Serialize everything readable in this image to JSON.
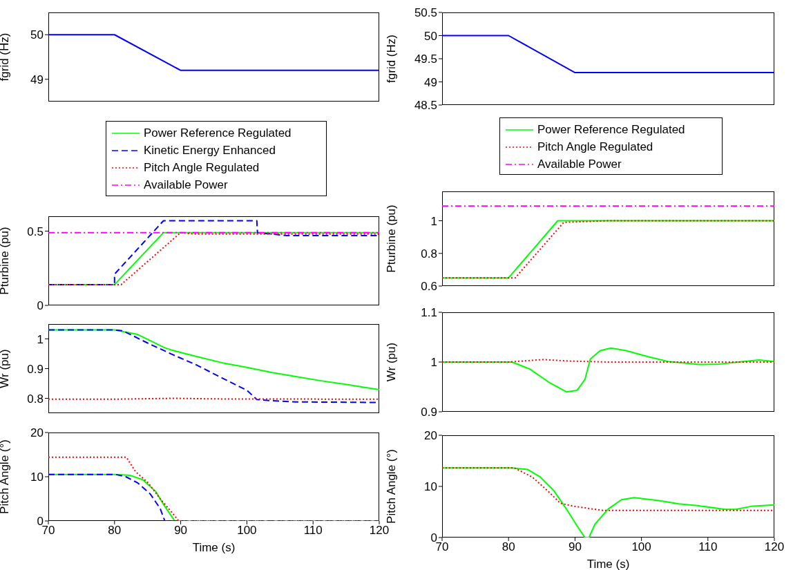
{
  "chart_data": [
    {
      "type": "line",
      "ylabel": "fgrid (Hz)",
      "xlim": [
        70,
        120
      ],
      "xticks": [
        70,
        80,
        90,
        100,
        110,
        120
      ],
      "ylim": [
        48.5,
        50.5
      ],
      "yticks": [
        49,
        50
      ],
      "tick_labels": "y",
      "series": [
        {
          "color": "#0000ff",
          "line_style": "solid",
          "x": [
            70,
            80,
            90,
            120
          ],
          "values": [
            50,
            50,
            49.2,
            49.2
          ]
        }
      ]
    },
    {
      "type": "line",
      "ylabel": "fgrid (Hz)",
      "xlim": [
        70,
        120
      ],
      "xticks": [
        70,
        80,
        90,
        100,
        110,
        120
      ],
      "ylim": [
        48.5,
        50.5
      ],
      "yticks": [
        48.5,
        49,
        49.5,
        50,
        50.5
      ],
      "tick_labels": "y",
      "series": [
        {
          "color": "#0000ff",
          "line_style": "solid",
          "x": [
            70,
            80,
            90,
            120
          ],
          "values": [
            50,
            50,
            49.2,
            49.2
          ]
        }
      ]
    },
    {
      "type": "line",
      "ylabel": "Pturbine (pu)",
      "xlim": [
        70,
        120
      ],
      "xticks": [
        70,
        80,
        90,
        100,
        110,
        120
      ],
      "ylim": [
        0,
        0.6
      ],
      "yticks": [
        0,
        0.5
      ],
      "tick_labels": "y",
      "legend": "top",
      "series": [
        {
          "name": "Power Reference Regulated",
          "color": "#00ff00",
          "line_style": "solid",
          "x": [
            70,
            80,
            87.4,
            120
          ],
          "values": [
            0.14,
            0.14,
            0.49,
            0.49
          ]
        },
        {
          "name": "Kinetic Energy Enhanced",
          "color": "#0000ff",
          "line_style": "dashed",
          "x": [
            70,
            80,
            80,
            87.4,
            101.5,
            101.6,
            106,
            120
          ],
          "values": [
            0.14,
            0.14,
            0.21,
            0.57,
            0.57,
            0.49,
            0.47,
            0.47
          ]
        },
        {
          "name": "Pitch Angle Regulated",
          "color": "#ff0000",
          "line_style": "dotted",
          "x": [
            70,
            81,
            90,
            92,
            120
          ],
          "values": [
            0.14,
            0.14,
            0.49,
            0.48,
            0.48
          ]
        },
        {
          "name": "Available Power",
          "color": "#ff00ff",
          "line_style": "dashdot",
          "x": [
            70,
            120
          ],
          "values": [
            0.49,
            0.49
          ]
        }
      ]
    },
    {
      "type": "line",
      "ylabel": "Pturbine (pu)",
      "xlim": [
        70,
        120
      ],
      "xticks": [
        70,
        80,
        90,
        100,
        110,
        120
      ],
      "ylim": [
        0.6,
        1.18
      ],
      "yticks": [
        0.6,
        0.8,
        1
      ],
      "tick_labels": "y",
      "legend": "top",
      "series": [
        {
          "name": "Power Reference Regulated",
          "color": "#00ff00",
          "line_style": "solid",
          "x": [
            70,
            80,
            87.4,
            120
          ],
          "values": [
            0.65,
            0.65,
            1,
            1
          ]
        },
        {
          "name": "Pitch Angle Regulated",
          "color": "#ff0000",
          "line_style": "dotted",
          "x": [
            70,
            81,
            88.3,
            91.5,
            95,
            120
          ],
          "values": [
            0.65,
            0.65,
            0.99,
            0.995,
            1,
            1
          ]
        },
        {
          "name": "Available Power",
          "color": "#ff00ff",
          "line_style": "dashdot",
          "x": [
            70,
            120
          ],
          "values": [
            1.09,
            1.09
          ]
        }
      ]
    },
    {
      "type": "line",
      "ylabel": "Wr (pu)",
      "xlim": [
        70,
        120
      ],
      "xticks": [
        70,
        80,
        90,
        100,
        110,
        120
      ],
      "ylim": [
        0.75,
        1.05
      ],
      "yticks": [
        0.8,
        0.9,
        1
      ],
      "tick_labels": "y",
      "series": [
        {
          "color": "#00ff00",
          "line_style": "solid",
          "x": [
            70,
            80,
            83.5,
            87.6,
            88.7,
            92.5,
            96.2,
            100,
            103.7,
            107.4,
            111.2,
            114.9,
            120
          ],
          "values": [
            1.03,
            1.03,
            1.015,
            0.97,
            0.962,
            0.94,
            0.92,
            0.904,
            0.887,
            0.873,
            0.859,
            0.847,
            0.829
          ]
        },
        {
          "color": "#0000ff",
          "line_style": "dashed",
          "x": [
            70,
            80,
            81.3,
            85,
            88.7,
            92.5,
            96.2,
            100,
            101.5,
            103.7,
            107.4,
            120
          ],
          "values": [
            1.03,
            1.03,
            1.027,
            0.986,
            0.948,
            0.911,
            0.869,
            0.827,
            0.796,
            0.792,
            0.788,
            0.786
          ]
        },
        {
          "color": "#ff0000",
          "line_style": "dotted",
          "x": [
            70,
            80,
            89,
            95,
            120
          ],
          "values": [
            0.797,
            0.797,
            0.8,
            0.798,
            0.797
          ]
        }
      ]
    },
    {
      "type": "line",
      "ylabel": "Wr (pu)",
      "xlim": [
        70,
        120
      ],
      "xticks": [
        70,
        80,
        90,
        100,
        110,
        120
      ],
      "ylim": [
        0.9,
        1.1
      ],
      "yticks": [
        0.9,
        1,
        1.1
      ],
      "tick_labels": "y",
      "series": [
        {
          "color": "#00ff00",
          "line_style": "solid",
          "x": [
            70,
            80.5,
            83.2,
            86,
            88.7,
            90.3,
            91.5,
            92.3,
            93.8,
            95.4,
            97.7,
            100.9,
            104,
            108.7,
            111.8,
            114.6,
            117.7,
            120
          ],
          "values": [
            1,
            1,
            0.986,
            0.96,
            0.94,
            0.943,
            0.965,
            1.006,
            1.023,
            1.028,
            1.023,
            1.011,
            1.001,
            0.995,
            0.996,
            1,
            1.004,
            1.001
          ]
        },
        {
          "color": "#ff0000",
          "line_style": "dotted",
          "x": [
            70,
            80,
            85.2,
            89.1,
            95,
            120
          ],
          "values": [
            1,
            1,
            1.005,
            1.002,
            1,
            1
          ]
        }
      ]
    },
    {
      "type": "line",
      "ylabel": "Pitch Angle (°)",
      "xlabel": "Time (s)",
      "xlim": [
        70,
        120
      ],
      "xticks": [
        70,
        80,
        90,
        100,
        110,
        120
      ],
      "ylim": [
        0,
        20
      ],
      "yticks": [
        0,
        10,
        20
      ],
      "series": [
        {
          "color": "#00ff00",
          "line_style": "solid",
          "x": [
            70,
            80.2,
            82.4,
            84.3,
            86.2,
            87.6,
            89.1,
            120
          ],
          "values": [
            10.5,
            10.5,
            10.3,
            9.3,
            6.7,
            3.3,
            0,
            0
          ]
        },
        {
          "color": "#0000ff",
          "line_style": "dashed",
          "x": [
            70,
            80.2,
            81.7,
            83.5,
            85.4,
            86.9,
            87.6,
            120
          ],
          "values": [
            10.5,
            10.5,
            10,
            8.6,
            6.1,
            2.8,
            0,
            0
          ]
        },
        {
          "color": "#ff0000",
          "line_style": "dotted",
          "x": [
            70,
            81.8,
            83.2,
            85.1,
            86.9,
            88.8,
            89.7,
            120
          ],
          "values": [
            14.4,
            14.4,
            11.1,
            8.6,
            5,
            1.7,
            0,
            0
          ]
        }
      ]
    },
    {
      "type": "line",
      "ylabel": "Pitch Angle (°)",
      "xlabel": "Time (s)",
      "xlim": [
        70,
        120
      ],
      "xticks": [
        70,
        80,
        90,
        100,
        110,
        120
      ],
      "ylim": [
        0,
        20
      ],
      "yticks": [
        0,
        10,
        20
      ],
      "series": [
        {
          "color": "#00ff00",
          "line_style": "solid",
          "x": [
            70,
            80.5,
            82.9,
            84.8,
            86.8,
            88.7,
            90.3,
            91.5,
            92.1,
            93,
            95,
            97,
            98.9,
            102.8,
            105.6,
            108.7,
            112.6,
            114.2,
            116.5,
            120
          ],
          "values": [
            13.6,
            13.6,
            13.3,
            11.8,
            9.2,
            5.6,
            2.3,
            0,
            0,
            2.6,
            5.6,
            7.4,
            7.8,
            7.2,
            6.6,
            6.2,
            5.5,
            5.5,
            6.1,
            6.4
          ]
        },
        {
          "color": "#ff0000",
          "line_style": "dotted",
          "x": [
            70,
            80.9,
            83.6,
            86,
            87.8,
            89.9,
            94.2,
            120
          ],
          "values": [
            13.6,
            13.6,
            11.8,
            9,
            6.7,
            6.1,
            5.3,
            5.3
          ]
        }
      ]
    }
  ]
}
